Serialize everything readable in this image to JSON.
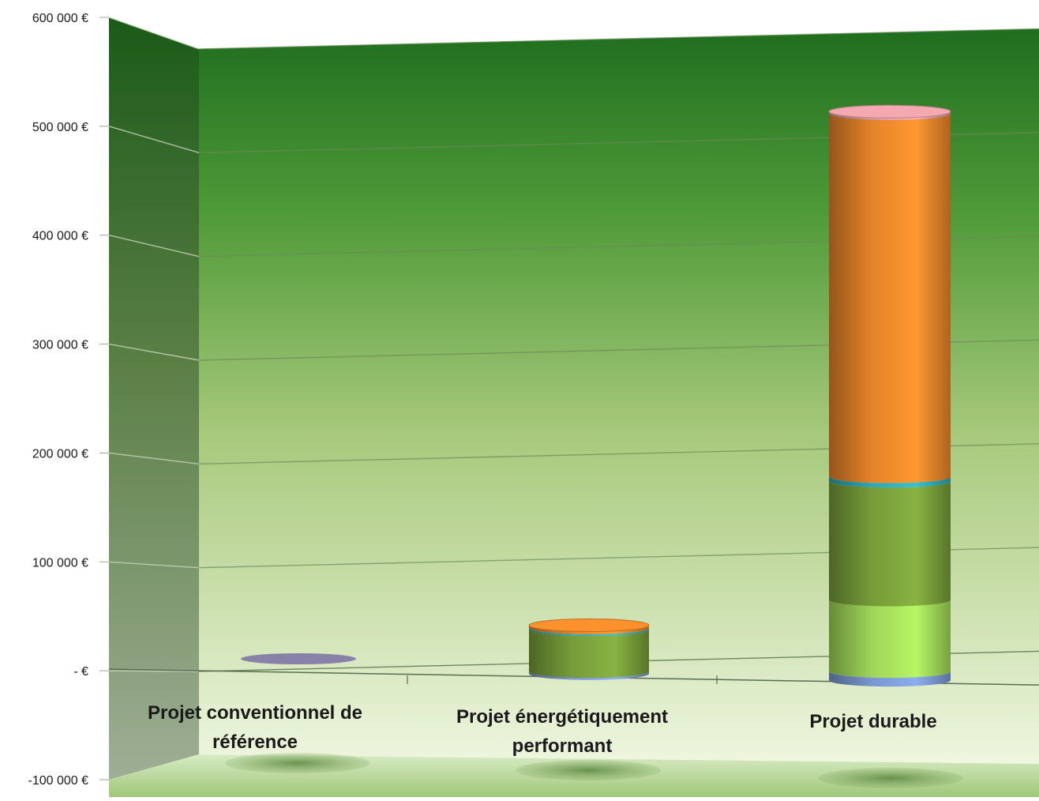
{
  "chart_data": {
    "type": "bar",
    "subtype": "stacked-3d-cylinder",
    "title": "",
    "xlabel": "",
    "ylabel": "",
    "ylim": [
      -100000,
      600000
    ],
    "y_ticks": [
      -100000,
      0,
      100000,
      200000,
      300000,
      400000,
      500000,
      600000
    ],
    "y_tick_labels": [
      "-100 000 €",
      "- €",
      "100 000 €",
      "200 000 €",
      "300 000 €",
      "400 000 €",
      "500 000 €",
      "600 000 €"
    ],
    "categories": [
      "Projet conventionnel de référence",
      "Projet énergétiquement performant",
      "Projet durable"
    ],
    "category_label_lines": [
      [
        "Projet conventionnel de",
        "référence"
      ],
      [
        "Projet énergétiquement",
        "performant"
      ],
      [
        "Projet durable"
      ]
    ],
    "series": [
      {
        "color": "#7f9ed9",
        "values": [
          0,
          -2000,
          -8000
        ]
      },
      {
        "color": "#a6e05c",
        "values": [
          0,
          0,
          65000
        ]
      },
      {
        "color": "#7ca33c",
        "values": [
          0,
          38000,
          108000
        ]
      },
      {
        "color": "#2fb0c0",
        "values": [
          0,
          1500,
          4000
        ]
      },
      {
        "color": "#f08a2c",
        "values": [
          0,
          2500,
          330000
        ]
      },
      {
        "color": "#e8a0a8",
        "values": [
          0,
          0,
          2000
        ]
      }
    ],
    "grid": true,
    "legend": "none",
    "colors": {
      "wall_top": "#1f6e1f",
      "wall_bottom": "#eef6df",
      "floor": "#a9cf82",
      "side_wall": "#2f6d24"
    }
  }
}
